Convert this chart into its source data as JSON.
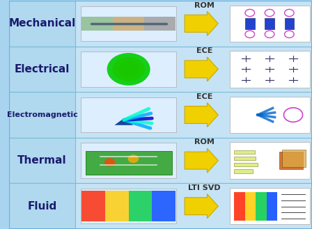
{
  "background_color": "#a8d4f0",
  "border_color": "#6ab0d8",
  "row_bg_color": "#c5e3f5",
  "row_label_bg": "#b0d8ef",
  "grid_line_color": "#7bbcd6",
  "rows": [
    {
      "label": "Mechanical",
      "method": "ROM",
      "left_color_scheme": "mechanical",
      "right_color_scheme": "mech_circuit"
    },
    {
      "label": "Electrical",
      "method": "ECE",
      "left_color_scheme": "electrical",
      "right_color_scheme": "elec_circuit"
    },
    {
      "label": "Electromagnetic",
      "method": "ECE",
      "left_color_scheme": "electromagnetic",
      "right_color_scheme": "em_circuit"
    },
    {
      "label": "Thermal",
      "method": "ROM",
      "left_color_scheme": "thermal",
      "right_color_scheme": "thermal_circuit"
    },
    {
      "label": "Fluid",
      "method": "LTI SVD",
      "left_color_scheme": "fluid",
      "right_color_scheme": "fluid_result"
    }
  ],
  "arrow_color": "#f0d000",
  "arrow_edge_color": "#c8a800",
  "label_fontsize": 11,
  "method_fontsize": 8,
  "figsize": [
    4.48,
    3.29
  ],
  "dpi": 100,
  "colors_map": {
    "mechanical": [
      "#8fbc8f",
      "#c8a870",
      "#a0a0a0"
    ],
    "electrical": [
      "#00cc00",
      "#ffaa00",
      "#ff4444",
      "#0000ff"
    ],
    "electromagnetic": [
      "#00aaff",
      "#00ffcc",
      "#0000cc"
    ],
    "thermal": [
      "#00cc44",
      "#88dd00",
      "#ffaa00",
      "#ff4400"
    ],
    "fluid": [
      "#ff2200",
      "#ffcc00",
      "#00cc44",
      "#0044ff"
    ]
  }
}
